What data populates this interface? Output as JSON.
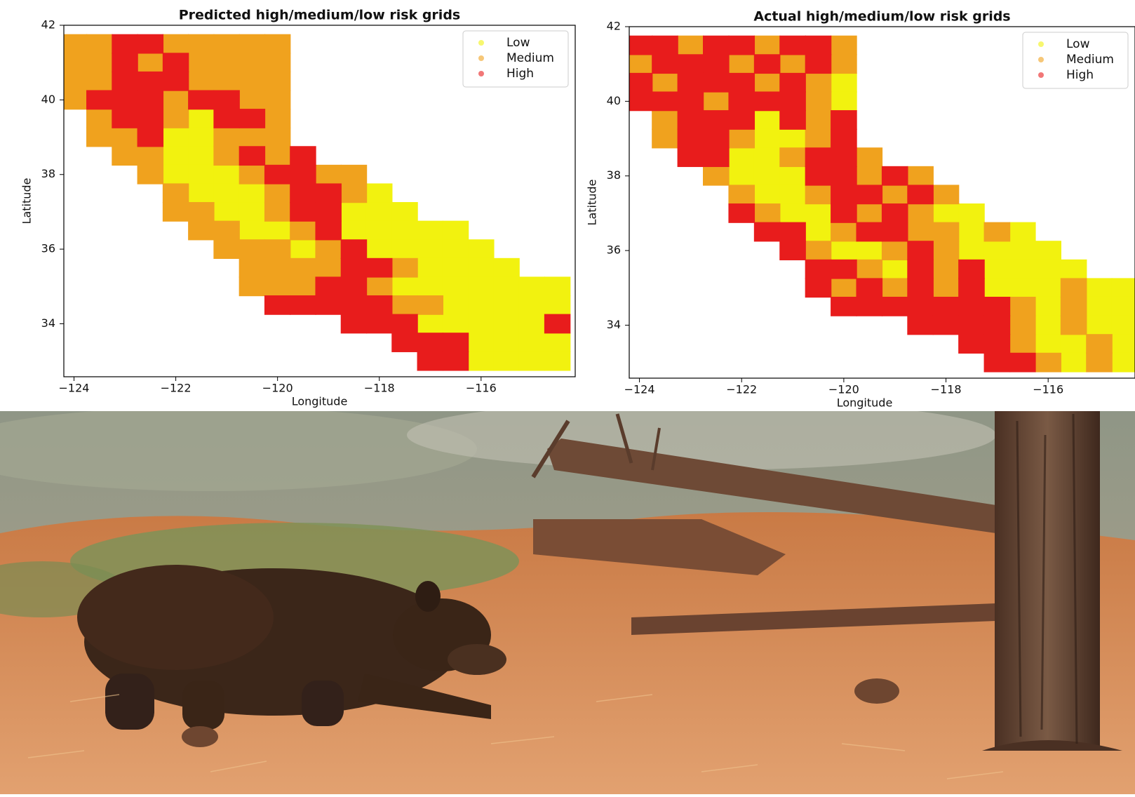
{
  "chart_data": [
    {
      "type": "scatter",
      "title": "Predicted high/medium/low risk grids",
      "x_label": "Longitude",
      "y_label": "Latitude",
      "xlim": [
        -124.2,
        -114.15
      ],
      "ylim": [
        32.58,
        42
      ],
      "xticks": [
        {
          "value": -124,
          "label": "−124"
        },
        {
          "value": -122,
          "label": "−122"
        },
        {
          "value": -120,
          "label": "−120"
        },
        {
          "value": -118,
          "label": "−118"
        },
        {
          "value": -116,
          "label": "−116"
        }
      ],
      "yticks": [
        34,
        36,
        38,
        40,
        42
      ],
      "legend": "upper right",
      "series": [
        {
          "name": "Low",
          "color": "#f2f20f",
          "x": [
            -121.5,
            -122,
            -121.5,
            -122,
            -121.5,
            -122,
            -121.5,
            -121,
            -121.5,
            -121,
            -120.5,
            -118,
            -121,
            -120.5,
            -118.5,
            -118,
            -117.5,
            -120.5,
            -120,
            -118.5,
            -118,
            -117.5,
            -117,
            -116.5,
            -119.5,
            -118,
            -117.5,
            -117,
            -116.5,
            -116,
            -117,
            -116.5,
            -116,
            -115.5,
            -117.5,
            -117,
            -116.5,
            -116,
            -115.5,
            -115,
            -114.5,
            -116.5,
            -116,
            -115.5,
            -115,
            -114.5,
            -117,
            -116.5,
            -116,
            -115.5,
            -115,
            -116,
            -115.5,
            -115,
            -114.5,
            -116,
            -115.5,
            -115,
            -114.5
          ],
          "values": [
            39.5,
            39,
            39,
            38.5,
            38.5,
            38,
            38,
            38,
            37.5,
            37.5,
            37.5,
            37.5,
            37,
            37,
            37,
            37,
            37,
            36.5,
            36.5,
            36.5,
            36.5,
            36.5,
            36.5,
            36.5,
            36,
            36,
            36,
            36,
            36,
            36,
            35.5,
            35.5,
            35.5,
            35.5,
            35,
            35,
            35,
            35,
            35,
            35,
            35,
            34.5,
            34.5,
            34.5,
            34.5,
            34.5,
            34,
            34,
            34,
            34,
            34,
            33.5,
            33.5,
            33.5,
            33.5,
            33,
            33,
            33,
            33
          ]
        },
        {
          "name": "Medium",
          "color": "#f0a21e",
          "x": [
            -124,
            -123.5,
            -122,
            -121.5,
            -121,
            -120.5,
            -120,
            -124,
            -123.5,
            -122.5,
            -121.5,
            -121,
            -120.5,
            -120,
            -124,
            -123.5,
            -121.5,
            -121,
            -120.5,
            -120,
            -124,
            -122,
            -120.5,
            -120,
            -123.5,
            -122,
            -120,
            -123.5,
            -123,
            -121,
            -120.5,
            -120,
            -123,
            -122.5,
            -121,
            -120,
            -122.5,
            -120.5,
            -119,
            -118.5,
            -122,
            -120,
            -118.5,
            -122,
            -121.5,
            -120,
            -121.5,
            -121,
            -119.5,
            -121,
            -120.5,
            -120,
            -119,
            -120.5,
            -120,
            -119.5,
            -119,
            -117.5,
            -120.5,
            -120,
            -119.5,
            -118,
            -117.5,
            -117
          ],
          "values": [
            41.5,
            41.5,
            41.5,
            41.5,
            41.5,
            41.5,
            41.5,
            41,
            41,
            41,
            41,
            41,
            41,
            41,
            40.5,
            40.5,
            40.5,
            40.5,
            40.5,
            40.5,
            40,
            40,
            40,
            40,
            39.5,
            39.5,
            39.5,
            39,
            39,
            39,
            39,
            39,
            38.5,
            38.5,
            38.5,
            38.5,
            38,
            38,
            38,
            38,
            37.5,
            37.5,
            37.5,
            37,
            37,
            37,
            36.5,
            36.5,
            36.5,
            36,
            36,
            36,
            36,
            35.5,
            35.5,
            35.5,
            35.5,
            35.5,
            35,
            35,
            35,
            35,
            34.5,
            34.5
          ]
        },
        {
          "name": "High",
          "color": "#e81c1c",
          "x": [
            -123,
            -122.5,
            -123,
            -122,
            -123,
            -122.5,
            -122,
            -123.5,
            -123,
            -122.5,
            -121.5,
            -121,
            -123,
            -122.5,
            -121,
            -120.5,
            -122.5,
            -120.5,
            -119.5,
            -120,
            -119.5,
            -119.5,
            -119,
            -119.5,
            -119,
            -119,
            -118.5,
            -118.5,
            -118,
            -119,
            -118.5,
            -120,
            -119.5,
            -119,
            -118.5,
            -118,
            -118.5,
            -118,
            -117.5,
            -114.5,
            -117.5,
            -117,
            -116.5,
            -117,
            -116.5
          ],
          "values": [
            41.5,
            41.5,
            41,
            41,
            40.5,
            40.5,
            40.5,
            40,
            40,
            40,
            40,
            40,
            39.5,
            39.5,
            39.5,
            39.5,
            39,
            38.5,
            38.5,
            38,
            38,
            37.5,
            37.5,
            37,
            37,
            36.5,
            36,
            35.5,
            35.5,
            35,
            35,
            34.5,
            34.5,
            34.5,
            34.5,
            34.5,
            34,
            34,
            34,
            34,
            33.5,
            33.5,
            33.5,
            33,
            33
          ]
        }
      ]
    },
    {
      "type": "scatter",
      "title": "Actual high/medium/low risk grids",
      "x_label": "Longitude",
      "y_label": "Latitude",
      "xlim": [
        -124.2,
        -114.3
      ],
      "ylim": [
        32.58,
        42
      ],
      "xticks": [
        {
          "value": -124,
          "label": "−124"
        },
        {
          "value": -122,
          "label": "−122"
        },
        {
          "value": -120,
          "label": "−120"
        },
        {
          "value": -118,
          "label": "−118"
        },
        {
          "value": -116,
          "label": "−116"
        }
      ],
      "yticks": [
        34,
        36,
        38,
        40,
        42
      ],
      "legend": "upper right",
      "series": [
        {
          "name": "Low",
          "color": "#f2f20f",
          "x": [
            -120,
            -120,
            -121.5,
            -121.5,
            -121,
            -122,
            -121.5,
            -122,
            -121.5,
            -121,
            -121.5,
            -121,
            -121,
            -120.5,
            -118,
            -117.5,
            -120.5,
            -117.5,
            -116.5,
            -120,
            -119.5,
            -117.5,
            -117,
            -116.5,
            -116,
            -119,
            -117,
            -116.5,
            -116,
            -115.5,
            -117,
            -116.5,
            -116,
            -115,
            -114.5,
            -116,
            -115,
            -114.5,
            -116,
            -115,
            -114.5,
            -116,
            -115.5,
            -114.5,
            -115.5,
            -114.5
          ],
          "values": [
            40.5,
            40,
            39.5,
            39,
            39,
            38.5,
            38.5,
            38,
            38,
            38,
            37.5,
            37.5,
            37,
            37,
            37,
            37,
            36.5,
            36.5,
            36.5,
            36,
            36,
            36,
            36,
            36,
            36,
            35.5,
            35.5,
            35.5,
            35.5,
            35.5,
            35,
            35,
            35,
            35,
            35,
            34.5,
            34.5,
            34.5,
            34,
            34,
            34,
            33.5,
            33.5,
            33.5,
            33,
            33
          ]
        },
        {
          "name": "Medium",
          "color": "#f0a21e",
          "x": [
            -123,
            -121.5,
            -120,
            -124,
            -122,
            -121,
            -120,
            -123.5,
            -121.5,
            -120.5,
            -122.5,
            -120.5,
            -123.5,
            -120.5,
            -123.5,
            -122,
            -120.5,
            -121,
            -119.5,
            -122.5,
            -119.5,
            -118.5,
            -122,
            -120.5,
            -119,
            -118,
            -121.5,
            -119.5,
            -118.5,
            -120,
            -118.5,
            -118,
            -117,
            -120.5,
            -119,
            -118,
            -119.5,
            -118,
            -120,
            -119,
            -118,
            -115.5,
            -116.5,
            -115.5,
            -116.5,
            -115.5,
            -116.5,
            -115,
            -116,
            -115
          ],
          "values": [
            41.5,
            41.5,
            41.5,
            41,
            41,
            41,
            41,
            40.5,
            40.5,
            40.5,
            40,
            40,
            39.5,
            39.5,
            39,
            39,
            39,
            38.5,
            38.5,
            38,
            38,
            38,
            37.5,
            37.5,
            37.5,
            37.5,
            37,
            37,
            37,
            36.5,
            36.5,
            36.5,
            36.5,
            36,
            36,
            36,
            35.5,
            35.5,
            35,
            35,
            35,
            35,
            34.5,
            34.5,
            34,
            34,
            33.5,
            33.5,
            33,
            33
          ]
        },
        {
          "name": "High",
          "color": "#e81c1c",
          "x": [
            -124,
            -123.5,
            -122.5,
            -122,
            -121,
            -120.5,
            -123.5,
            -123,
            -122.5,
            -121.5,
            -120.5,
            -124,
            -123,
            -122.5,
            -122,
            -121,
            -124,
            -123.5,
            -123,
            -122,
            -121.5,
            -121,
            -123,
            -122.5,
            -122,
            -121,
            -120,
            -123,
            -122.5,
            -120,
            -123,
            -122.5,
            -120.5,
            -120,
            -120.5,
            -120,
            -119,
            -120,
            -119.5,
            -118.5,
            -122,
            -120,
            -119,
            -121.5,
            -121,
            -119.5,
            -119,
            -121,
            -118.5,
            -120.5,
            -120,
            -118.5,
            -117.5,
            -120.5,
            -119.5,
            -118.5,
            -117.5,
            -120,
            -119.5,
            -119,
            -118.5,
            -118,
            -117.5,
            -117,
            -118.5,
            -118,
            -117.5,
            -117,
            -117.5,
            -117,
            -117,
            -116.5
          ],
          "values": [
            41.5,
            41.5,
            41.5,
            41.5,
            41.5,
            41.5,
            41,
            41,
            41,
            41,
            41,
            40.5,
            40.5,
            40.5,
            40.5,
            40.5,
            40,
            40,
            40,
            40,
            40,
            40,
            39.5,
            39.5,
            39.5,
            39.5,
            39.5,
            39,
            39,
            39,
            38.5,
            38.5,
            38.5,
            38.5,
            38,
            38,
            38,
            37.5,
            37.5,
            37.5,
            37,
            37,
            37,
            36.5,
            36.5,
            36.5,
            36.5,
            36,
            36,
            35.5,
            35.5,
            35.5,
            35.5,
            35,
            35,
            35,
            35,
            34.5,
            34.5,
            34.5,
            34.5,
            34.5,
            34.5,
            34.5,
            34,
            34,
            34,
            34,
            33.5,
            33.5,
            33,
            33
          ]
        }
      ]
    }
  ]
}
